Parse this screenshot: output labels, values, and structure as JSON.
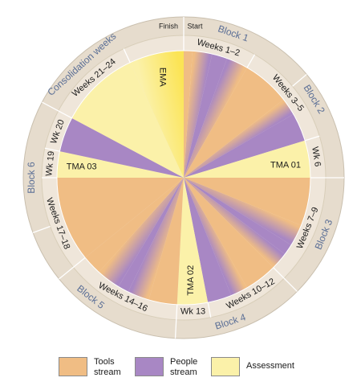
{
  "colors": {
    "tools": "#f0bd84",
    "people": "#a887c4",
    "assessment": "#fbf1a9",
    "ema": "#fbe455",
    "ring": "#efe6da",
    "outer_ring": "#e6dccd",
    "text": "#1a1a1a",
    "block_text": "#5b6f96"
  },
  "top_labels": {
    "finish": "Finish",
    "start": "Start"
  },
  "blocks": [
    {
      "id": "block1",
      "label": "Block 1"
    },
    {
      "id": "block2",
      "label": "Block 2"
    },
    {
      "id": "block3",
      "label": "Block 3"
    },
    {
      "id": "block4",
      "label": "Block 4"
    },
    {
      "id": "block5",
      "label": "Block 5"
    },
    {
      "id": "block6",
      "label": "Block 6"
    },
    {
      "id": "consolidation",
      "label": "Consolidation weeks"
    }
  ],
  "weeks": [
    {
      "id": "w1",
      "label": "Weeks 1–2"
    },
    {
      "id": "w3",
      "label": "Weeks 3–5"
    },
    {
      "id": "w6",
      "label": "Wk 6"
    },
    {
      "id": "w7",
      "label": "Weeks 7–9"
    },
    {
      "id": "w10",
      "label": "Weeks 10–12"
    },
    {
      "id": "w13",
      "label": "Wk 13"
    },
    {
      "id": "w14",
      "label": "Weeks 14–16"
    },
    {
      "id": "w17",
      "label": "Weeks 17–18"
    },
    {
      "id": "w19",
      "label": "Wk 19"
    },
    {
      "id": "w20",
      "label": "Wk 20"
    },
    {
      "id": "w21",
      "label": "Weeks 21–24"
    }
  ],
  "assessments": [
    {
      "id": "tma01",
      "label": "TMA 01"
    },
    {
      "id": "tma02",
      "label": "TMA 02"
    },
    {
      "id": "tma03",
      "label": "TMA 03"
    },
    {
      "id": "ema",
      "label": "EMA"
    }
  ],
  "legend": [
    {
      "id": "tools",
      "label": "Tools stream",
      "color": "#f0bd84"
    },
    {
      "id": "people",
      "label": "People stream",
      "color": "#a887c4"
    },
    {
      "id": "assessment",
      "label": "Assessment",
      "color": "#fbf1a9"
    }
  ]
}
